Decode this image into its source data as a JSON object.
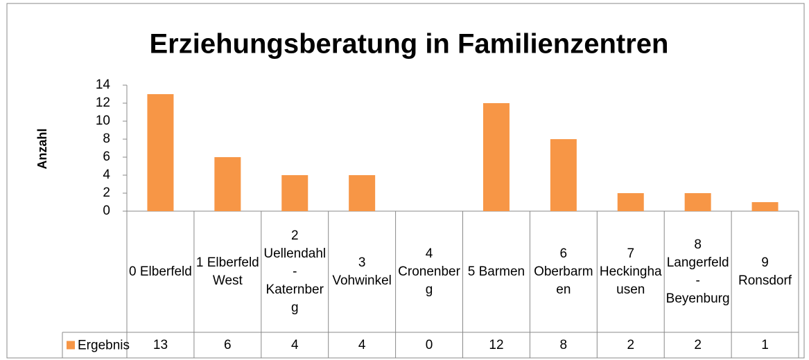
{
  "chart_data": {
    "type": "bar",
    "title": "Erziehungsberatung in Familienzentren",
    "y_axis_label": "Anzahl",
    "categories": [
      "0 Elberfeld",
      "1 Elberfeld West",
      "2 Uellendahl-Katernberg",
      "3 Vohwinkel",
      "4 Cronenberg",
      "5 Barmen",
      "6 Oberbarmen",
      "7 Heckinghausen",
      "8 Langerfeld-Beyenburg",
      "9 Ronsdorf"
    ],
    "series": [
      {
        "name": "Ergebnis",
        "color": "#f79646",
        "values": [
          13,
          6,
          4,
          4,
          0,
          12,
          8,
          2,
          2,
          1
        ]
      }
    ],
    "ylim": [
      0,
      14
    ],
    "yticks": [
      0,
      2,
      4,
      6,
      8,
      10,
      12,
      14
    ],
    "grid": false
  }
}
